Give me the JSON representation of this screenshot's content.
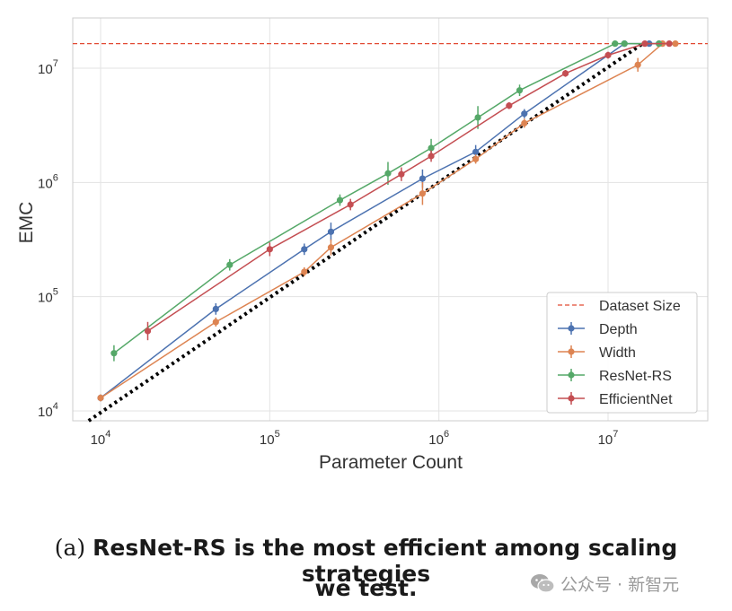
{
  "chart_data": {
    "type": "line",
    "scale": {
      "x": "log",
      "y": "log"
    },
    "xlabel": "Parameter Count",
    "ylabel": "EMC",
    "xlim": [
      6000,
      40000000
    ],
    "ylim": [
      8000,
      22000000
    ],
    "x_ticks": [
      {
        "value": 10000,
        "base": "10",
        "exp": "4"
      },
      {
        "value": 100000,
        "base": "10",
        "exp": "5"
      },
      {
        "value": 1000000,
        "base": "10",
        "exp": "6"
      },
      {
        "value": 10000000,
        "base": "10",
        "exp": "7"
      }
    ],
    "y_ticks": [
      {
        "value": 10000,
        "base": "10",
        "exp": "4"
      },
      {
        "value": 100000,
        "base": "10",
        "exp": "5"
      },
      {
        "value": 1000000,
        "base": "10",
        "exp": "6"
      },
      {
        "value": 10000000,
        "base": "10",
        "exp": "7"
      }
    ],
    "grid": true,
    "legend_position": "lower-right",
    "dataset_size": {
      "name": "Dataset Size",
      "value": 16400000,
      "color": "#e24a33"
    },
    "lower_bound": {
      "x": [
        8500,
        16000000
      ],
      "y": [
        8200,
        16400000
      ],
      "color": "#000000",
      "style": "dotted"
    },
    "series": [
      {
        "name": "Depth",
        "color": "#4c72b0",
        "points": [
          {
            "x": 10000,
            "y": 13000,
            "err": 0.03
          },
          {
            "x": 48000,
            "y": 78000,
            "err": 0.05
          },
          {
            "x": 160000,
            "y": 260000,
            "err": 0.05
          },
          {
            "x": 230000,
            "y": 370000,
            "err": 0.08
          },
          {
            "x": 800000,
            "y": 1080000,
            "err": 0.08
          },
          {
            "x": 1650000,
            "y": 1850000,
            "err": 0.06
          },
          {
            "x": 3200000,
            "y": 4000000,
            "err": 0.04
          },
          {
            "x": 12500000,
            "y": 16400000,
            "err": 0.01
          },
          {
            "x": 17500000,
            "y": 16400000,
            "err": 0.01
          },
          {
            "x": 20000000,
            "y": 16400000,
            "err": 0.01
          }
        ]
      },
      {
        "name": "Width",
        "color": "#dd8452",
        "points": [
          {
            "x": 10000,
            "y": 13000,
            "err": 0.03
          },
          {
            "x": 48000,
            "y": 60000,
            "err": 0.04
          },
          {
            "x": 160000,
            "y": 165000,
            "err": 0.04
          },
          {
            "x": 230000,
            "y": 270000,
            "err": 0.07
          },
          {
            "x": 800000,
            "y": 800000,
            "err": 0.1
          },
          {
            "x": 1650000,
            "y": 1600000,
            "err": 0.04
          },
          {
            "x": 3200000,
            "y": 3300000,
            "err": 0.04
          },
          {
            "x": 15000000,
            "y": 10700000,
            "err": 0.06
          },
          {
            "x": 21000000,
            "y": 16400000,
            "err": 0.01
          },
          {
            "x": 25000000,
            "y": 16400000,
            "err": 0.01
          }
        ]
      },
      {
        "name": "ResNet-RS",
        "color": "#55a868",
        "points": [
          {
            "x": 12000,
            "y": 32000,
            "err": 0.07
          },
          {
            "x": 58000,
            "y": 190000,
            "err": 0.05
          },
          {
            "x": 260000,
            "y": 700000,
            "err": 0.05
          },
          {
            "x": 500000,
            "y": 1200000,
            "err": 0.1
          },
          {
            "x": 900000,
            "y": 2000000,
            "err": 0.08
          },
          {
            "x": 1700000,
            "y": 3700000,
            "err": 0.1
          },
          {
            "x": 3000000,
            "y": 6400000,
            "err": 0.05
          },
          {
            "x": 11000000,
            "y": 16400000,
            "err": 0.01
          },
          {
            "x": 12500000,
            "y": 16400000,
            "err": 0.01
          },
          {
            "x": 20000000,
            "y": 16400000,
            "err": 0.01
          }
        ]
      },
      {
        "name": "EfficientNet",
        "color": "#c44e52",
        "points": [
          {
            "x": 19000,
            "y": 50000,
            "err": 0.08
          },
          {
            "x": 100000,
            "y": 260000,
            "err": 0.06
          },
          {
            "x": 300000,
            "y": 640000,
            "err": 0.05
          },
          {
            "x": 600000,
            "y": 1180000,
            "err": 0.06
          },
          {
            "x": 900000,
            "y": 1700000,
            "err": 0.05
          },
          {
            "x": 2600000,
            "y": 4700000,
            "err": 0.03
          },
          {
            "x": 5600000,
            "y": 9000000,
            "err": 0.03
          },
          {
            "x": 10000000,
            "y": 13000000,
            "err": 0.03
          },
          {
            "x": 16500000,
            "y": 16400000,
            "err": 0.01
          },
          {
            "x": 23000000,
            "y": 16400000,
            "err": 0.01
          }
        ]
      }
    ]
  },
  "caption": {
    "label": "(a)",
    "line1": "ResNet-RS is the most efficient among scaling strategies",
    "line2": "we test."
  },
  "watermark": {
    "text": "公众号 · 新智元",
    "icon": "wechat-icon"
  }
}
